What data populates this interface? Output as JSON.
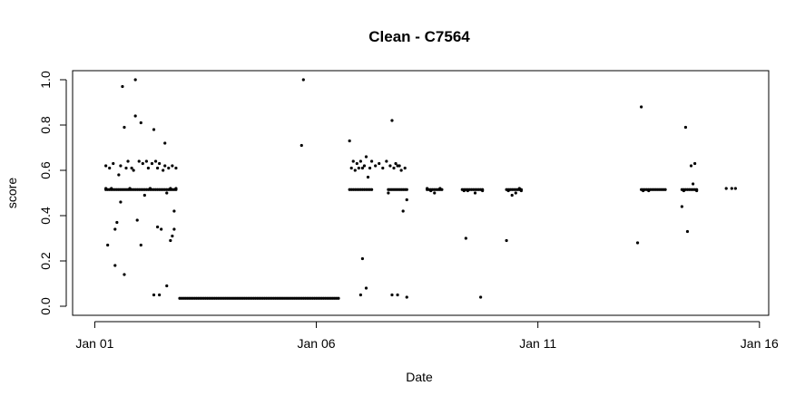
{
  "chart_data": {
    "type": "scatter",
    "title": "Clean - C7564",
    "xlabel": "Date",
    "ylabel": "score",
    "x_axis": {
      "type": "date",
      "ticks": [
        {
          "date": "2024-01-01",
          "label": "Jan 01"
        },
        {
          "date": "2024-01-06",
          "label": "Jan 06"
        },
        {
          "date": "2024-01-11",
          "label": "Jan 11"
        },
        {
          "date": "2024-01-16",
          "label": "Jan 16"
        }
      ],
      "range": [
        "2023-12-31T12:00",
        "2024-01-16T05:00"
      ]
    },
    "y_axis": {
      "ticks": [
        {
          "value": 0.0,
          "label": "0.0"
        },
        {
          "value": 0.2,
          "label": "0.2"
        },
        {
          "value": 0.4,
          "label": "0.4"
        },
        {
          "value": 0.6,
          "label": "0.6"
        },
        {
          "value": 0.8,
          "label": "0.8"
        },
        {
          "value": 1.0,
          "label": "1.0"
        }
      ],
      "range": [
        -0.04,
        1.04
      ]
    },
    "grid": false,
    "legend": "none",
    "point_color": "#000000",
    "series": [
      {
        "points": [
          [
            "2024-01-01T06:00",
            0.62
          ],
          [
            "2024-01-01T06:00",
            0.52
          ],
          [
            "2024-01-01T07:00",
            0.27
          ],
          [
            "2024-01-01T08:00",
            0.61
          ],
          [
            "2024-01-01T09:00",
            0.52
          ],
          [
            "2024-01-01T10:00",
            0.63
          ],
          [
            "2024-01-01T11:00",
            0.18
          ],
          [
            "2024-01-01T11:00",
            0.34
          ],
          [
            "2024-01-01T12:00",
            0.37
          ],
          [
            "2024-01-01T13:00",
            0.58
          ],
          [
            "2024-01-01T14:00",
            0.62
          ],
          [
            "2024-01-01T14:00",
            0.46
          ],
          [
            "2024-01-01T15:00",
            0.97
          ],
          [
            "2024-01-01T16:00",
            0.14
          ],
          [
            "2024-01-01T16:00",
            0.79
          ],
          [
            "2024-01-01T17:00",
            0.61
          ],
          [
            "2024-01-01T18:00",
            0.64
          ],
          [
            "2024-01-01T19:00",
            0.52
          ],
          [
            "2024-01-01T20:00",
            0.61
          ],
          [
            "2024-01-01T21:00",
            0.6
          ],
          [
            "2024-01-01T22:00",
            1.0
          ],
          [
            "2024-01-01T22:00",
            0.84
          ],
          [
            "2024-01-01T23:00",
            0.38
          ],
          [
            "2024-01-02T00:00",
            0.64
          ],
          [
            "2024-01-02T01:00",
            0.81
          ],
          [
            "2024-01-02T01:00",
            0.27
          ],
          [
            "2024-01-02T02:00",
            0.63
          ],
          [
            "2024-01-02T03:00",
            0.49
          ],
          [
            "2024-01-02T04:00",
            0.64
          ],
          [
            "2024-01-02T05:00",
            0.61
          ],
          [
            "2024-01-02T06:00",
            0.52
          ],
          [
            "2024-01-02T07:00",
            0.63
          ],
          [
            "2024-01-02T08:00",
            0.78
          ],
          [
            "2024-01-02T08:00",
            0.05
          ],
          [
            "2024-01-02T09:00",
            0.64
          ],
          [
            "2024-01-02T10:00",
            0.61
          ],
          [
            "2024-01-02T10:00",
            0.35
          ],
          [
            "2024-01-02T11:00",
            0.05
          ],
          [
            "2024-01-02T11:00",
            0.63
          ],
          [
            "2024-01-02T12:00",
            0.34
          ],
          [
            "2024-01-02T13:00",
            0.6
          ],
          [
            "2024-01-02T14:00",
            0.72
          ],
          [
            "2024-01-02T14:00",
            0.62
          ],
          [
            "2024-01-02T15:00",
            0.09
          ],
          [
            "2024-01-02T15:00",
            0.5
          ],
          [
            "2024-01-02T16:00",
            0.61
          ],
          [
            "2024-01-02T17:00",
            0.29
          ],
          [
            "2024-01-02T17:00",
            0.52
          ],
          [
            "2024-01-02T18:00",
            0.62
          ],
          [
            "2024-01-02T18:00",
            0.31
          ],
          [
            "2024-01-02T19:00",
            0.42
          ],
          [
            "2024-01-02T19:00",
            0.34
          ],
          [
            "2024-01-02T20:00",
            0.61
          ],
          [
            "2024-01-02T20:00",
            0.52
          ],
          [
            "2024-01-05T16:00",
            0.71
          ],
          [
            "2024-01-05T17:00",
            1.0
          ],
          [
            "2024-01-06T18:00",
            0.73
          ],
          [
            "2024-01-06T19:00",
            0.61
          ],
          [
            "2024-01-06T20:00",
            0.64
          ],
          [
            "2024-01-06T21:00",
            0.6
          ],
          [
            "2024-01-06T22:00",
            0.63
          ],
          [
            "2024-01-06T23:00",
            0.61
          ],
          [
            "2024-01-07T00:00",
            0.05
          ],
          [
            "2024-01-07T00:00",
            0.64
          ],
          [
            "2024-01-07T01:00",
            0.21
          ],
          [
            "2024-01-07T01:00",
            0.61
          ],
          [
            "2024-01-07T02:00",
            0.62
          ],
          [
            "2024-01-07T03:00",
            0.66
          ],
          [
            "2024-01-07T03:00",
            0.08
          ],
          [
            "2024-01-07T04:00",
            0.57
          ],
          [
            "2024-01-07T05:00",
            0.61
          ],
          [
            "2024-01-07T06:00",
            0.64
          ],
          [
            "2024-01-07T08:00",
            0.62
          ],
          [
            "2024-01-07T10:00",
            0.63
          ],
          [
            "2024-01-07T12:00",
            0.61
          ],
          [
            "2024-01-07T14:00",
            0.64
          ],
          [
            "2024-01-07T15:00",
            0.5
          ],
          [
            "2024-01-07T16:00",
            0.62
          ],
          [
            "2024-01-07T17:00",
            0.05
          ],
          [
            "2024-01-07T17:00",
            0.82
          ],
          [
            "2024-01-07T18:00",
            0.61
          ],
          [
            "2024-01-07T19:00",
            0.63
          ],
          [
            "2024-01-07T20:00",
            0.05
          ],
          [
            "2024-01-07T20:00",
            0.62
          ],
          [
            "2024-01-07T21:00",
            0.62
          ],
          [
            "2024-01-07T22:00",
            0.6
          ],
          [
            "2024-01-07T23:00",
            0.42
          ],
          [
            "2024-01-08T00:00",
            0.61
          ],
          [
            "2024-01-08T01:00",
            0.47
          ],
          [
            "2024-01-08T01:00",
            0.04
          ],
          [
            "2024-01-08T12:00",
            0.52
          ],
          [
            "2024-01-08T14:00",
            0.51
          ],
          [
            "2024-01-08T16:00",
            0.5
          ],
          [
            "2024-01-08T19:00",
            0.52
          ],
          [
            "2024-01-09T08:00",
            0.51
          ],
          [
            "2024-01-09T09:00",
            0.3
          ],
          [
            "2024-01-09T10:00",
            0.51
          ],
          [
            "2024-01-09T14:00",
            0.5
          ],
          [
            "2024-01-09T17:00",
            0.04
          ],
          [
            "2024-01-09T18:00",
            0.51
          ],
          [
            "2024-01-10T07:00",
            0.29
          ],
          [
            "2024-01-10T08:00",
            0.51
          ],
          [
            "2024-01-10T10:00",
            0.49
          ],
          [
            "2024-01-10T12:00",
            0.5
          ],
          [
            "2024-01-10T14:00",
            0.52
          ],
          [
            "2024-01-10T15:00",
            0.51
          ],
          [
            "2024-01-13T06:00",
            0.28
          ],
          [
            "2024-01-13T08:00",
            0.88
          ],
          [
            "2024-01-13T09:00",
            0.51
          ],
          [
            "2024-01-13T12:00",
            0.51
          ],
          [
            "2024-01-14T06:00",
            0.44
          ],
          [
            "2024-01-14T07:00",
            0.51
          ],
          [
            "2024-01-14T08:00",
            0.79
          ],
          [
            "2024-01-14T09:00",
            0.33
          ],
          [
            "2024-01-14T11:00",
            0.62
          ],
          [
            "2024-01-14T12:00",
            0.54
          ],
          [
            "2024-01-14T13:00",
            0.63
          ],
          [
            "2024-01-14T14:00",
            0.51
          ],
          [
            "2024-01-15T06:00",
            0.52
          ],
          [
            "2024-01-15T09:00",
            0.52
          ],
          [
            "2024-01-15T11:00",
            0.52
          ]
        ],
        "dense_runs": [
          {
            "from": "2024-01-01T06:00",
            "to": "2024-01-02T20:00",
            "y": 0.515
          },
          {
            "from": "2024-01-02T22:00",
            "to": "2024-01-05T23:00",
            "y": 0.035
          },
          {
            "from": "2024-01-06T00:00",
            "to": "2024-01-06T12:00",
            "y": 0.035
          },
          {
            "from": "2024-01-06T18:00",
            "to": "2024-01-07T06:00",
            "y": 0.515
          },
          {
            "from": "2024-01-07T15:00",
            "to": "2024-01-08T01:00",
            "y": 0.515
          },
          {
            "from": "2024-01-08T12:00",
            "to": "2024-01-08T20:00",
            "y": 0.515
          },
          {
            "from": "2024-01-09T07:00",
            "to": "2024-01-09T18:00",
            "y": 0.515
          },
          {
            "from": "2024-01-10T07:00",
            "to": "2024-01-10T15:00",
            "y": 0.515
          },
          {
            "from": "2024-01-13T08:00",
            "to": "2024-01-13T21:00",
            "y": 0.515
          },
          {
            "from": "2024-01-14T06:00",
            "to": "2024-01-14T14:00",
            "y": 0.515
          }
        ]
      }
    ]
  }
}
